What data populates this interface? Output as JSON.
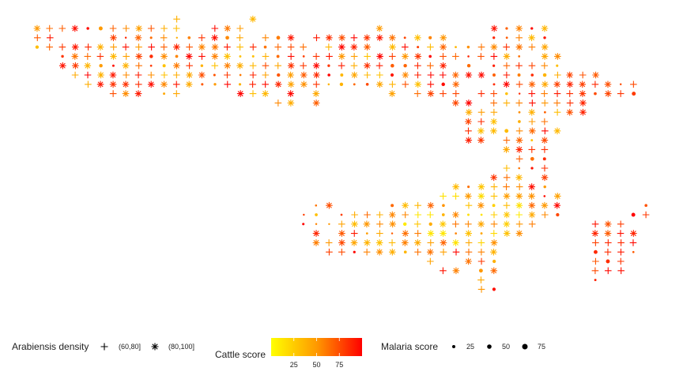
{
  "chart_data": {
    "type": "scatter",
    "title": "",
    "xlabel": "",
    "ylabel": "",
    "grid": false,
    "legend_position": "bottom",
    "shape_legend": {
      "title": "Arabiensis density",
      "items": [
        {
          "label": "(60,80]",
          "shape": "plus"
        },
        {
          "label": "(80,100]",
          "shape": "asterisk"
        }
      ]
    },
    "color_legend": {
      "title": "Cattle score",
      "breaks": [
        25,
        50,
        75
      ],
      "range": [
        0,
        100
      ],
      "low_color": "#ffff00",
      "mid_color": "#ff9900",
      "high_color": "#ff0000"
    },
    "size_legend": {
      "title": "Malaria score",
      "breaks": [
        25,
        50,
        75
      ]
    },
    "rows": [
      {
        "y": 0,
        "cols": "fk-n-zf",
        "shape": "mix",
        "start": 0
      },
      {
        "y": 1,
        "cols": "a-zaaaz",
        "start": 0
      },
      {
        "y": 2,
        "cols": "a-zaaaz",
        "start": 0
      }
    ]
  }
}
